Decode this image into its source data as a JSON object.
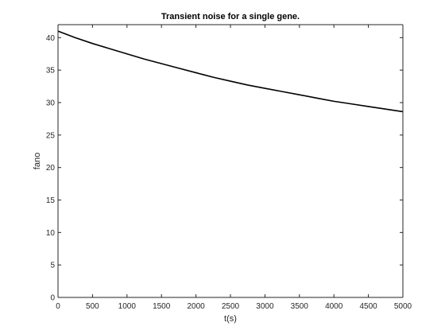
{
  "chart_data": {
    "type": "line",
    "title": "Transient noise for a single gene.",
    "xlabel": "t(s)",
    "ylabel": "fano",
    "xlim": [
      0,
      5000
    ],
    "ylim": [
      0,
      42
    ],
    "xticks": [
      0,
      500,
      1000,
      1500,
      2000,
      2500,
      3000,
      3500,
      4000,
      4500,
      5000
    ],
    "yticks": [
      0,
      5,
      10,
      15,
      20,
      25,
      30,
      35,
      40
    ],
    "grid": false,
    "legend": "none",
    "series": [
      {
        "color": "#000000",
        "x": [
          0,
          250,
          500,
          750,
          1000,
          1250,
          1500,
          1750,
          2000,
          2250,
          2500,
          2750,
          3000,
          3250,
          3500,
          3750,
          4000,
          4250,
          4500,
          4750,
          5000
        ],
        "y": [
          41.0,
          40.0,
          39.1,
          38.3,
          37.5,
          36.7,
          36.0,
          35.3,
          34.6,
          33.9,
          33.3,
          32.7,
          32.2,
          31.7,
          31.2,
          30.7,
          30.2,
          29.8,
          29.4,
          29.0,
          28.6
        ]
      }
    ]
  }
}
